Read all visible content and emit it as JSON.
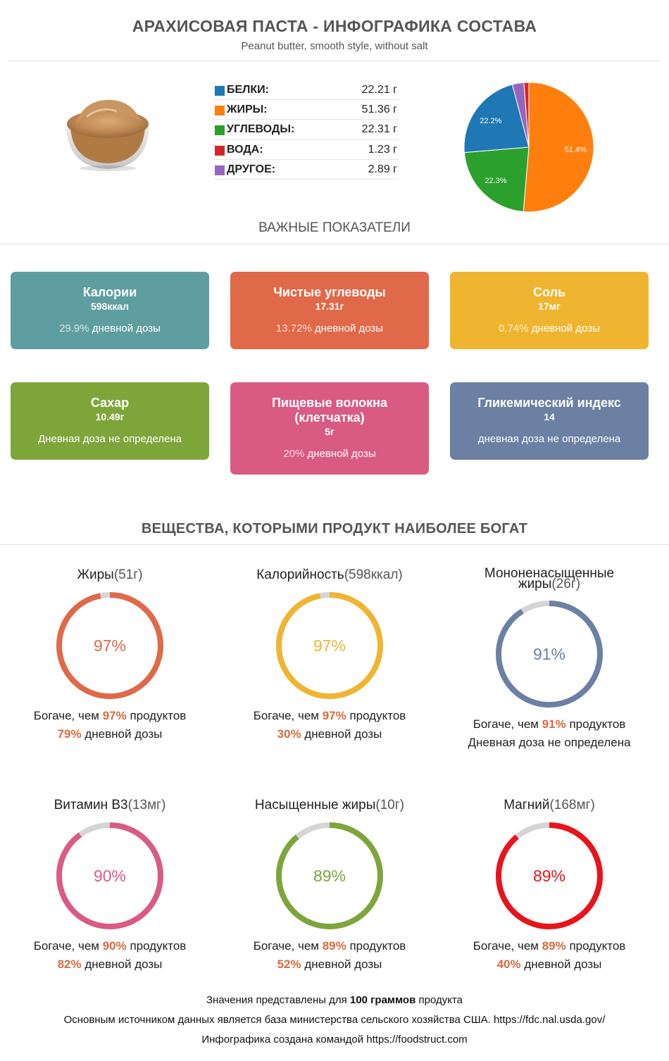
{
  "header": {
    "title": "АРАХИСОВАЯ ПАСТА - ИНФОГРАФИКА СОСТАВА",
    "subtitle": "Peanut butter, smooth style, without salt"
  },
  "macros": [
    {
      "label": "БЕЛКИ:",
      "value": "22.21 г",
      "color": "#1f77b4"
    },
    {
      "label": "ЖИРЫ:",
      "value": "51.36 г",
      "color": "#ff7f0e"
    },
    {
      "label": "УГЛЕВОДЫ:",
      "value": "22.31 г",
      "color": "#2ca02c"
    },
    {
      "label": "ВОДА:",
      "value": "1.23 г",
      "color": "#d62728"
    },
    {
      "label": "ДРУГОЕ:",
      "value": "2.89 г",
      "color": "#9467bd"
    }
  ],
  "chart_data": {
    "type": "pie",
    "slices": [
      {
        "label": "51.4%",
        "value": 51.36,
        "color": "#ff7f0e"
      },
      {
        "label": "22.3%",
        "value": 22.31,
        "color": "#2ca02c"
      },
      {
        "label": "22.2%",
        "value": 22.21,
        "color": "#1f77b4"
      },
      {
        "label": "",
        "value": 2.89,
        "color": "#9467bd"
      },
      {
        "label": "",
        "value": 1.23,
        "color": "#d62728"
      }
    ]
  },
  "important": {
    "title": "ВАЖНЫЕ ПОКАЗАТЕЛИ",
    "cards": [
      {
        "title": "Калории",
        "value": "598ккал",
        "pct": "29.9%",
        "desc": " дневной дозы",
        "color": "#5f9ea0"
      },
      {
        "title": "Чистые углеводы",
        "value": "17.31г",
        "pct": "13.72%",
        "desc": " дневной дозы",
        "color": "#e0694a"
      },
      {
        "title": "Соль",
        "value": "17мг",
        "pct": "0.74%",
        "desc": " дневной дозы",
        "color": "#f0b530"
      },
      {
        "title": "Сахар",
        "value": "10.49г",
        "pct": "",
        "desc": "Дневная доза не определена",
        "color": "#7ea53a"
      },
      {
        "title": "Пищевые волокна (клетчатка)",
        "value": "5г",
        "pct": "20%",
        "desc": " дневной дозы",
        "color": "#d95b84"
      },
      {
        "title": "Гликемический индекс",
        "value": "14",
        "pct": "",
        "desc": "дневная доза не определена",
        "color": "#6b80a3"
      }
    ]
  },
  "rich": {
    "title": "ВЕЩЕСТВА, КОТОРЫМИ ПРОДУКТ НАИБОЛЕЕ БОГАТ",
    "richer_prefix": "Богаче, чем ",
    "richer_suffix": " продуктов",
    "daily_suffix": " дневной дозы",
    "items": [
      {
        "name": "Жиры",
        "amount": "(51г)",
        "percent": 97,
        "percent_label": "97%",
        "daily": "79%",
        "daily_text": "",
        "color": "#e0694a"
      },
      {
        "name": "Калорийность",
        "amount": "(598ккал)",
        "percent": 97,
        "percent_label": "97%",
        "daily": "30%",
        "daily_text": "",
        "color": "#f0b530"
      },
      {
        "name": "Мононенасыщенные жиры",
        "amount": "(26г)",
        "percent": 91,
        "percent_label": "91%",
        "daily": "",
        "daily_text": "Дневная доза не определена",
        "color": "#6b80a3"
      },
      {
        "name": "Витамин B3",
        "amount": "(13мг)",
        "percent": 90,
        "percent_label": "90%",
        "daily": "82%",
        "daily_text": "",
        "color": "#d95b84"
      },
      {
        "name": "Насыщенные жиры",
        "amount": "(10г)",
        "percent": 89,
        "percent_label": "89%",
        "daily": "52%",
        "daily_text": "",
        "color": "#7ea53a"
      },
      {
        "name": "Магний",
        "amount": "(168мг)",
        "percent": 89,
        "percent_label": "89%",
        "daily": "40%",
        "daily_text": "",
        "color": "#e8141b"
      }
    ]
  },
  "footer": {
    "line1_a": "Значения представлены для ",
    "line1_b": "100",
    "line1_c": " граммов",
    "line1_d": " продукта",
    "line2": "Основным источником данных является база министерства сельского хозяйства США. https://fdc.nal.usda.gov/",
    "line3": "Инфографика создана командой https://foodstruct.com"
  }
}
